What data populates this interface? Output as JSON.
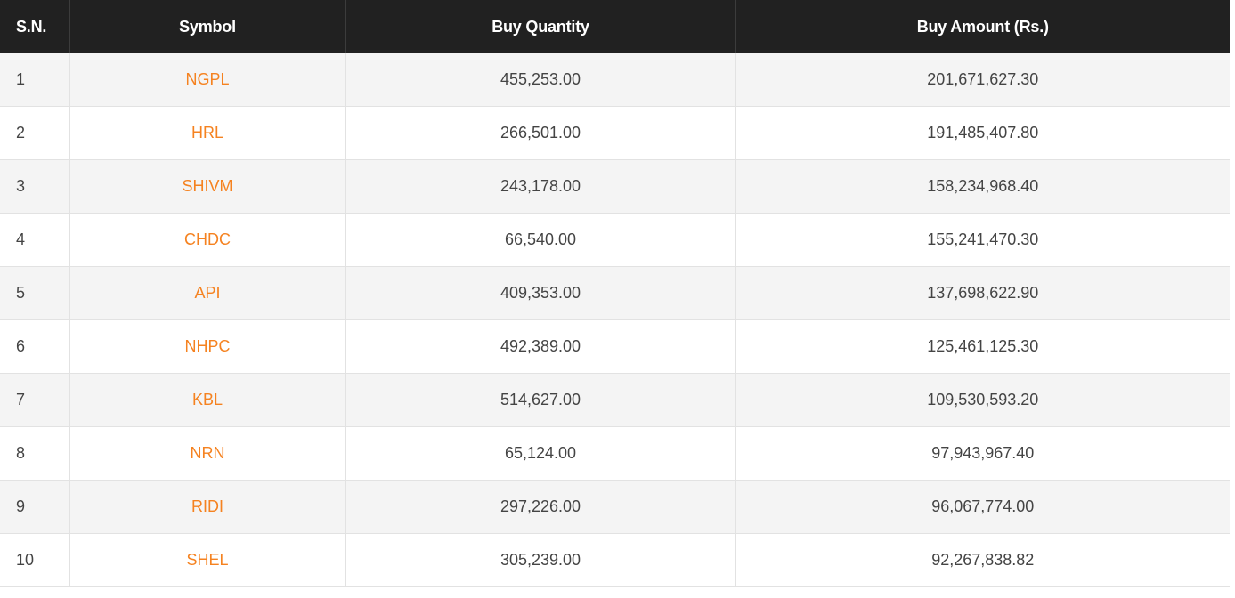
{
  "table": {
    "headers": {
      "sn": "S.N.",
      "symbol": "Symbol",
      "buy_quantity": "Buy Quantity",
      "buy_amount": "Buy Amount (Rs.)"
    },
    "rows": [
      {
        "sn": "1",
        "symbol": "NGPL",
        "qty": "455,253.00",
        "amount": "201,671,627.30"
      },
      {
        "sn": "2",
        "symbol": "HRL",
        "qty": "266,501.00",
        "amount": "191,485,407.80"
      },
      {
        "sn": "3",
        "symbol": "SHIVM",
        "qty": "243,178.00",
        "amount": "158,234,968.40"
      },
      {
        "sn": "4",
        "symbol": "CHDC",
        "qty": "66,540.00",
        "amount": "155,241,470.30"
      },
      {
        "sn": "5",
        "symbol": "API",
        "qty": "409,353.00",
        "amount": "137,698,622.90"
      },
      {
        "sn": "6",
        "symbol": "NHPC",
        "qty": "492,389.00",
        "amount": "125,461,125.30"
      },
      {
        "sn": "7",
        "symbol": "KBL",
        "qty": "514,627.00",
        "amount": "109,530,593.20"
      },
      {
        "sn": "8",
        "symbol": "NRN",
        "qty": "65,124.00",
        "amount": "97,943,967.40"
      },
      {
        "sn": "9",
        "symbol": "RIDI",
        "qty": "297,226.00",
        "amount": "96,067,774.00"
      },
      {
        "sn": "10",
        "symbol": "SHEL",
        "qty": "305,239.00",
        "amount": "92,267,838.82"
      }
    ]
  },
  "colors": {
    "header_bg": "#212121",
    "header_text": "#ffffff",
    "symbol_link": "#f58220",
    "row_alt_bg": "#f4f4f4",
    "body_text": "#444444"
  }
}
